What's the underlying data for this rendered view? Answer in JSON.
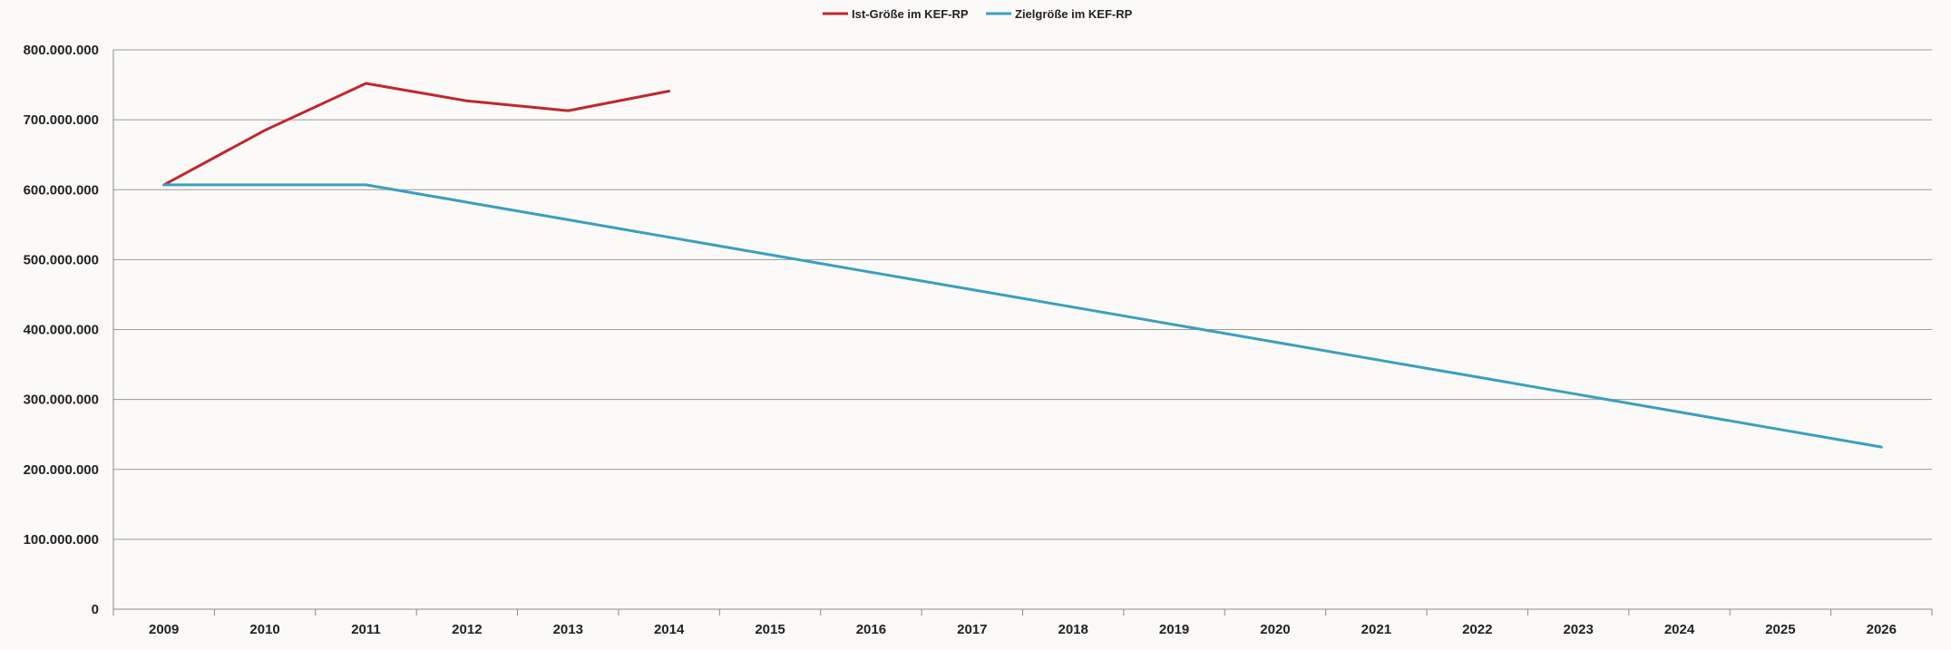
{
  "chart_data": {
    "type": "line",
    "title": "",
    "xlabel": "",
    "ylabel": "",
    "categories": [
      "2009",
      "2010",
      "2011",
      "2012",
      "2013",
      "2014",
      "2015",
      "2016",
      "2017",
      "2018",
      "2019",
      "2020",
      "2021",
      "2022",
      "2023",
      "2024",
      "2025",
      "2026"
    ],
    "ylim": [
      0,
      800000000
    ],
    "y_ticks": [
      0,
      100000000,
      200000000,
      300000000,
      400000000,
      500000000,
      600000000,
      700000000,
      800000000
    ],
    "y_tick_labels": [
      "0",
      "100.000.000",
      "200.000.000",
      "300.000.000",
      "400.000.000",
      "500.000.000",
      "600.000.000",
      "700.000.000",
      "800.000.000"
    ],
    "grid": true,
    "legend_position": "top-center",
    "series": [
      {
        "name": "Ist-Größe im KEF-RP",
        "color": "#c0272d",
        "values": [
          607000000,
          685000000,
          752000000,
          727000000,
          713000000,
          741000000,
          null,
          null,
          null,
          null,
          null,
          null,
          null,
          null,
          null,
          null,
          null,
          null
        ]
      },
      {
        "name": "Zielgröße im KEF-RP",
        "color": "#3a9fc0",
        "values": [
          607000000,
          607000000,
          607000000,
          582000000,
          557000000,
          532000000,
          507000000,
          482000000,
          457000000,
          432000000,
          407000000,
          382000000,
          357000000,
          332000000,
          307000000,
          282000000,
          257000000,
          232000000
        ]
      }
    ]
  }
}
